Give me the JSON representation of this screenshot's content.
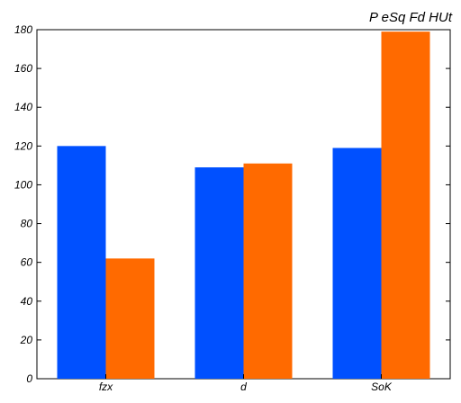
{
  "chart_data": {
    "type": "bar",
    "title": "P eSq Fd HUt",
    "xlabel": "",
    "ylabel": "",
    "categories": [
      "fzx",
      "d",
      "SoK"
    ],
    "series": [
      {
        "values": [
          120,
          109,
          119
        ],
        "color": "#0050ff"
      },
      {
        "values": [
          62,
          111,
          179
        ],
        "color": "#ff6a00"
      }
    ],
    "ylim": [
      0,
      180
    ],
    "yticks": [
      0,
      20,
      40,
      60,
      80,
      100,
      120,
      140,
      160,
      180
    ],
    "ytick_labels": [
      "0",
      "20",
      "40",
      "60",
      "80",
      "100",
      "120",
      "140",
      "160",
      "180"
    ],
    "grid": false,
    "legend": "none"
  }
}
